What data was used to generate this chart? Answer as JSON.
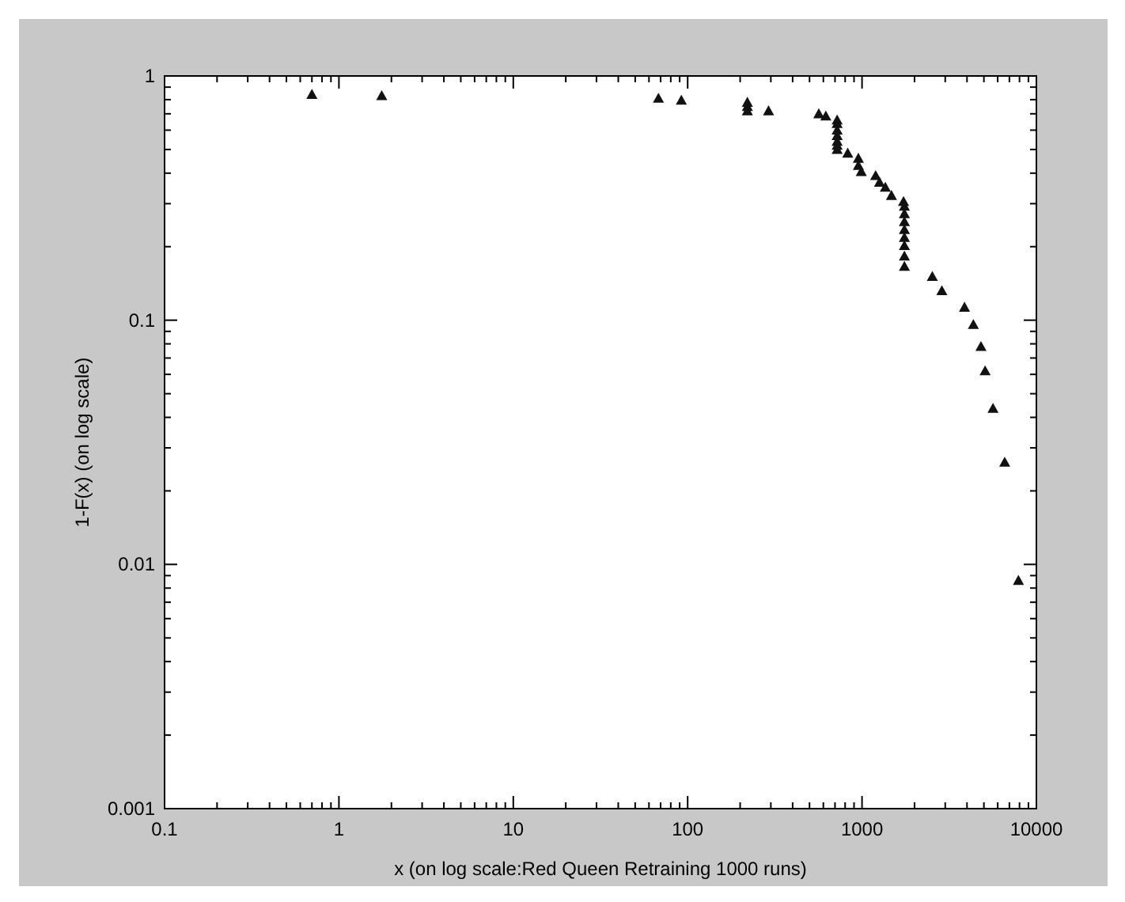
{
  "chart_data": {
    "type": "scatter",
    "xlabel": "x (on log scale:Red Queen Retraining 1000 runs)",
    "ylabel": "1-F(x) (on log scale)",
    "log": "xy",
    "grid": false,
    "marker": "triangle",
    "xlim": [
      0.1,
      10000
    ],
    "xticks": [
      0.1,
      1,
      10,
      100,
      1000,
      10000
    ],
    "ylim": [
      0.001,
      1
    ],
    "yticks": [
      0.001,
      0.01,
      0.1,
      1
    ],
    "series": [
      {
        "color": "#111111",
        "x": [
          0.7,
          1.76,
          68,
          92,
          220,
          220,
          220,
          291,
          565,
          620,
          720,
          720,
          720,
          720,
          720,
          720,
          720,
          828,
          953,
          953,
          990,
          1197,
          1260,
          1360,
          1475,
          1730,
          1750,
          1750,
          1750,
          1750,
          1750,
          1750,
          1750,
          1750,
          2530,
          2870,
          3870,
          4350,
          4810,
          5080,
          5640,
          6580,
          7890
        ],
        "values": [
          0.84,
          0.83,
          0.81,
          0.795,
          0.78,
          0.75,
          0.72,
          0.72,
          0.7,
          0.685,
          0.66,
          0.638,
          0.6,
          0.57,
          0.54,
          0.52,
          0.5,
          0.483,
          0.46,
          0.43,
          0.406,
          0.391,
          0.367,
          0.35,
          0.324,
          0.306,
          0.293,
          0.273,
          0.253,
          0.235,
          0.218,
          0.202,
          0.183,
          0.166,
          0.151,
          0.132,
          0.113,
          0.096,
          0.078,
          0.062,
          0.0435,
          0.0262,
          0.0086
        ]
      }
    ]
  }
}
